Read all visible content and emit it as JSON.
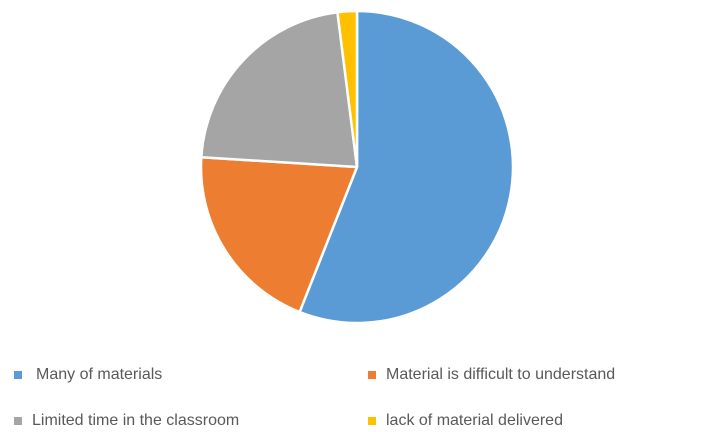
{
  "chart_data": {
    "type": "pie",
    "categories": [
      "Many of materials",
      "Material is difficult to understand",
      "Limited time in the classroom",
      "lack of material delivered"
    ],
    "values": [
      56,
      20,
      22,
      2
    ],
    "colors": [
      "#5B9BD5",
      "#ED7D31",
      "#A5A5A5",
      "#FFC000"
    ],
    "start_angle_deg": 0,
    "direction": "clockwise",
    "slice_border_color": "#ffffff",
    "legend_position": "bottom"
  }
}
